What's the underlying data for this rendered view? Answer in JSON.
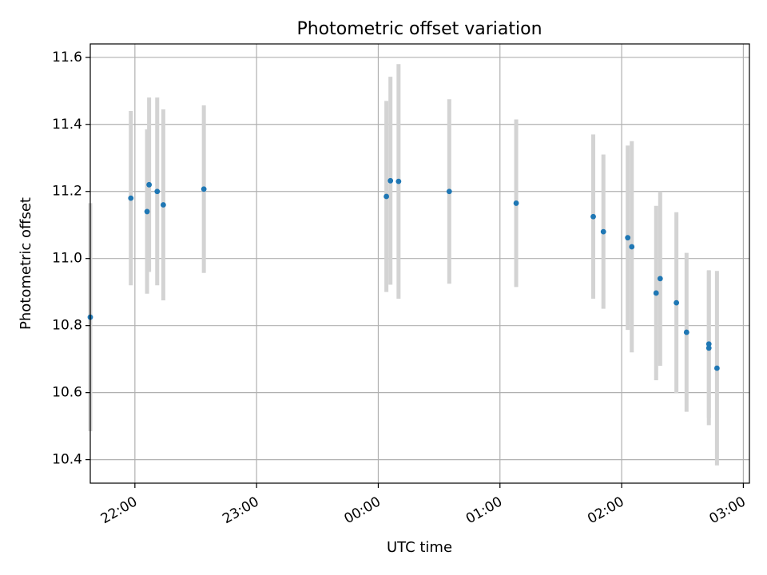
{
  "chart_data": {
    "type": "scatter",
    "title": "Photometric offset variation",
    "xlabel": "UTC time",
    "ylabel": "Photometric offset",
    "x_axis_format": "time",
    "x_ticks": [
      "22:00",
      "23:00",
      "00:00",
      "01:00",
      "02:00",
      "03:00"
    ],
    "y_ticks": [
      "10.4",
      "10.6",
      "10.8",
      "11.0",
      "11.2",
      "11.4",
      "11.6"
    ],
    "xlim": [
      "21:38",
      "03:03"
    ],
    "ylim": [
      10.33,
      11.64
    ],
    "grid": true,
    "marker_color": "#1f77b4",
    "errorbar_color": "#d3d3d3",
    "points": [
      {
        "t": "21:38",
        "y": 10.825,
        "err": 0.34
      },
      {
        "t": "21:58",
        "y": 11.18,
        "err": 0.26
      },
      {
        "t": "22:06",
        "y": 11.14,
        "err": 0.245
      },
      {
        "t": "22:07",
        "y": 11.22,
        "err": 0.26
      },
      {
        "t": "22:11",
        "y": 11.2,
        "err": 0.28
      },
      {
        "t": "22:14",
        "y": 11.16,
        "err": 0.285
      },
      {
        "t": "22:34",
        "y": 11.207,
        "err": 0.25
      },
      {
        "t": "00:04",
        "y": 11.185,
        "err": 0.285
      },
      {
        "t": "00:06",
        "y": 11.232,
        "err": 0.31
      },
      {
        "t": "00:10",
        "y": 11.23,
        "err": 0.35
      },
      {
        "t": "00:35",
        "y": 11.2,
        "err": 0.275
      },
      {
        "t": "01:08",
        "y": 11.165,
        "err": 0.25
      },
      {
        "t": "01:46",
        "y": 11.125,
        "err": 0.245
      },
      {
        "t": "01:51",
        "y": 11.08,
        "err": 0.23
      },
      {
        "t": "02:03",
        "y": 11.062,
        "err": 0.275
      },
      {
        "t": "02:05",
        "y": 11.035,
        "err": 0.315
      },
      {
        "t": "02:17",
        "y": 10.897,
        "err": 0.26
      },
      {
        "t": "02:19",
        "y": 10.94,
        "err": 0.26
      },
      {
        "t": "02:27",
        "y": 10.868,
        "err": 0.27
      },
      {
        "t": "02:32",
        "y": 10.78,
        "err": 0.237
      },
      {
        "t": "02:43",
        "y": 10.745,
        "err": 0.22
      },
      {
        "t": "02:43",
        "y": 10.733,
        "err": 0.23
      },
      {
        "t": "02:47",
        "y": 10.673,
        "err": 0.29
      }
    ]
  }
}
